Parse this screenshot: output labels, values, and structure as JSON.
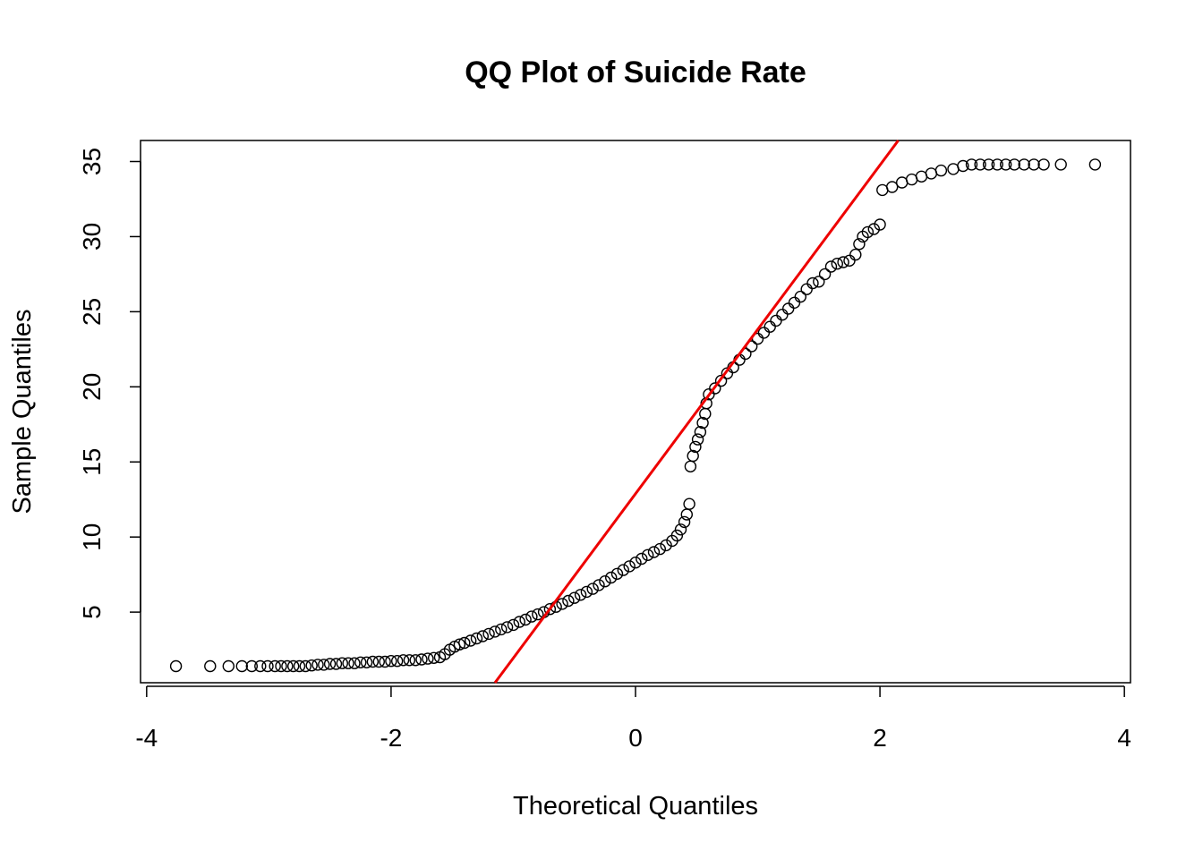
{
  "chart_data": {
    "type": "scatter",
    "title": "QQ Plot of Suicide Rate",
    "xlabel": "Theoretical Quantiles",
    "ylabel": "Sample Quantiles",
    "xlim": [
      -4.05,
      4.05
    ],
    "ylim": [
      0.3,
      36.4
    ],
    "x_ticks": [
      -4,
      -2,
      0,
      2,
      4
    ],
    "y_ticks": [
      5,
      10,
      15,
      20,
      25,
      30,
      35
    ],
    "grid": false,
    "legend": "none",
    "reference_line": {
      "color": "#ee0000",
      "points": [
        [
          -1.15,
          0.3
        ],
        [
          2.15,
          36.4
        ]
      ]
    },
    "series": [
      {
        "marker": "open-circle",
        "color": "#000000",
        "points": [
          [
            -3.76,
            1.4
          ],
          [
            -3.48,
            1.4
          ],
          [
            -3.33,
            1.4
          ],
          [
            -3.22,
            1.4
          ],
          [
            -3.14,
            1.4
          ],
          [
            -3.07,
            1.4
          ],
          [
            -3.01,
            1.4
          ],
          [
            -2.95,
            1.4
          ],
          [
            -2.9,
            1.4
          ],
          [
            -2.85,
            1.4
          ],
          [
            -2.8,
            1.4
          ],
          [
            -2.75,
            1.4
          ],
          [
            -2.7,
            1.4
          ],
          [
            -2.65,
            1.45
          ],
          [
            -2.6,
            1.5
          ],
          [
            -2.55,
            1.5
          ],
          [
            -2.5,
            1.55
          ],
          [
            -2.45,
            1.55
          ],
          [
            -2.4,
            1.6
          ],
          [
            -2.35,
            1.6
          ],
          [
            -2.3,
            1.6
          ],
          [
            -2.25,
            1.65
          ],
          [
            -2.2,
            1.65
          ],
          [
            -2.15,
            1.7
          ],
          [
            -2.1,
            1.7
          ],
          [
            -2.05,
            1.7
          ],
          [
            -2.0,
            1.75
          ],
          [
            -1.95,
            1.75
          ],
          [
            -1.9,
            1.8
          ],
          [
            -1.85,
            1.8
          ],
          [
            -1.8,
            1.8
          ],
          [
            -1.75,
            1.85
          ],
          [
            -1.7,
            1.9
          ],
          [
            -1.65,
            1.95
          ],
          [
            -1.6,
            2.0
          ],
          [
            -1.56,
            2.2
          ],
          [
            -1.52,
            2.5
          ],
          [
            -1.48,
            2.7
          ],
          [
            -1.44,
            2.85
          ],
          [
            -1.4,
            2.95
          ],
          [
            -1.35,
            3.1
          ],
          [
            -1.3,
            3.25
          ],
          [
            -1.25,
            3.4
          ],
          [
            -1.2,
            3.55
          ],
          [
            -1.15,
            3.7
          ],
          [
            -1.1,
            3.85
          ],
          [
            -1.05,
            4.0
          ],
          [
            -1.0,
            4.15
          ],
          [
            -0.95,
            4.35
          ],
          [
            -0.9,
            4.5
          ],
          [
            -0.85,
            4.7
          ],
          [
            -0.8,
            4.85
          ],
          [
            -0.75,
            5.0
          ],
          [
            -0.7,
            5.2
          ],
          [
            -0.65,
            5.35
          ],
          [
            -0.6,
            5.55
          ],
          [
            -0.55,
            5.75
          ],
          [
            -0.5,
            5.95
          ],
          [
            -0.45,
            6.15
          ],
          [
            -0.4,
            6.35
          ],
          [
            -0.35,
            6.55
          ],
          [
            -0.3,
            6.8
          ],
          [
            -0.25,
            7.05
          ],
          [
            -0.2,
            7.3
          ],
          [
            -0.15,
            7.55
          ],
          [
            -0.1,
            7.8
          ],
          [
            -0.05,
            8.05
          ],
          [
            0.0,
            8.3
          ],
          [
            0.05,
            8.55
          ],
          [
            0.1,
            8.8
          ],
          [
            0.15,
            9.0
          ],
          [
            0.2,
            9.2
          ],
          [
            0.25,
            9.45
          ],
          [
            0.3,
            9.75
          ],
          [
            0.34,
            10.1
          ],
          [
            0.37,
            10.5
          ],
          [
            0.4,
            11.0
          ],
          [
            0.42,
            11.5
          ],
          [
            0.44,
            12.2
          ],
          [
            0.45,
            14.7
          ],
          [
            0.47,
            15.4
          ],
          [
            0.49,
            16.0
          ],
          [
            0.51,
            16.5
          ],
          [
            0.53,
            17.0
          ],
          [
            0.55,
            17.6
          ],
          [
            0.57,
            18.2
          ],
          [
            0.58,
            18.9
          ],
          [
            0.6,
            19.5
          ],
          [
            0.65,
            19.9
          ],
          [
            0.7,
            20.4
          ],
          [
            0.75,
            20.9
          ],
          [
            0.8,
            21.3
          ],
          [
            0.85,
            21.8
          ],
          [
            0.9,
            22.2
          ],
          [
            0.95,
            22.7
          ],
          [
            1.0,
            23.2
          ],
          [
            1.05,
            23.6
          ],
          [
            1.1,
            24.0
          ],
          [
            1.15,
            24.4
          ],
          [
            1.2,
            24.8
          ],
          [
            1.25,
            25.2
          ],
          [
            1.3,
            25.6
          ],
          [
            1.35,
            26.0
          ],
          [
            1.4,
            26.5
          ],
          [
            1.45,
            26.9
          ],
          [
            1.5,
            27.0
          ],
          [
            1.55,
            27.5
          ],
          [
            1.6,
            28.0
          ],
          [
            1.65,
            28.2
          ],
          [
            1.7,
            28.3
          ],
          [
            1.75,
            28.4
          ],
          [
            1.8,
            28.8
          ],
          [
            1.83,
            29.5
          ],
          [
            1.86,
            30.0
          ],
          [
            1.9,
            30.3
          ],
          [
            1.95,
            30.5
          ],
          [
            2.0,
            30.8
          ],
          [
            2.02,
            33.1
          ],
          [
            2.1,
            33.3
          ],
          [
            2.18,
            33.6
          ],
          [
            2.26,
            33.8
          ],
          [
            2.34,
            34.0
          ],
          [
            2.42,
            34.2
          ],
          [
            2.5,
            34.4
          ],
          [
            2.6,
            34.5
          ],
          [
            2.68,
            34.7
          ],
          [
            2.75,
            34.8
          ],
          [
            2.82,
            34.8
          ],
          [
            2.89,
            34.8
          ],
          [
            2.96,
            34.8
          ],
          [
            3.03,
            34.8
          ],
          [
            3.1,
            34.8
          ],
          [
            3.18,
            34.8
          ],
          [
            3.26,
            34.8
          ],
          [
            3.34,
            34.8
          ],
          [
            3.48,
            34.8
          ],
          [
            3.76,
            34.8
          ]
        ]
      }
    ]
  }
}
